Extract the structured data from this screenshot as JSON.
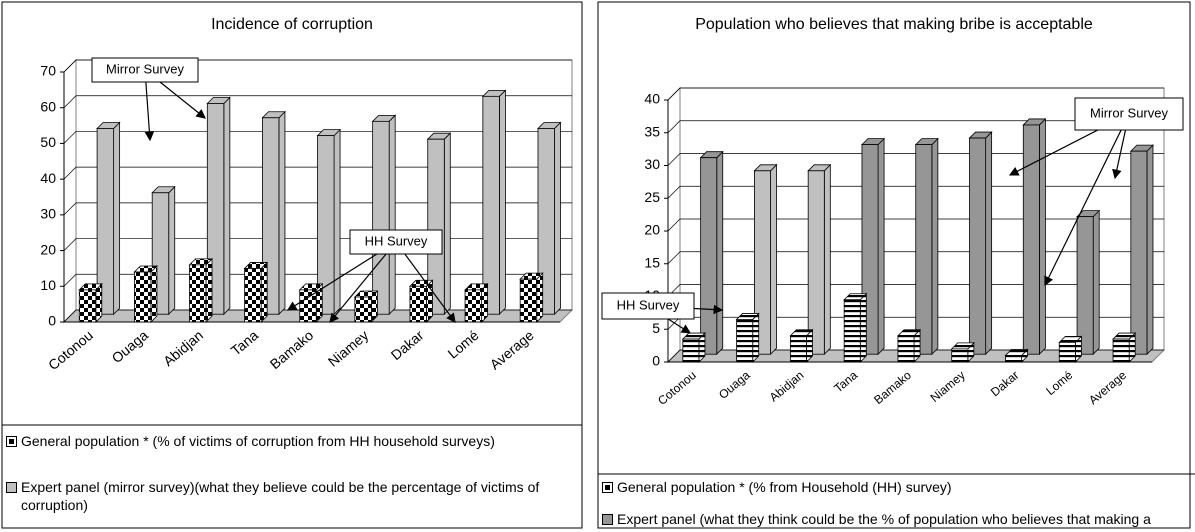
{
  "chart_data": [
    {
      "type": "bar3d",
      "title": "Incidence of corruption",
      "categories": [
        "Cotonou",
        "Ouaga",
        "Abidjan",
        "Tana",
        "Bamako",
        "Niamey",
        "Dakar",
        "Lomé",
        "Average"
      ],
      "series": [
        {
          "name": "General population * (%  of victims of corruption from HH household surveys)",
          "color": "#000000",
          "pattern": "checker",
          "values": [
            9,
            14,
            16,
            15,
            9,
            7,
            10,
            9,
            12
          ]
        },
        {
          "name": "Expert panel (mirror survey)(what they believe could be the percentage of victims of corruption)",
          "color": "#c0c0c0",
          "values": [
            52,
            34,
            59,
            55,
            50,
            54,
            49,
            61,
            52
          ]
        }
      ],
      "ylim": [
        0,
        70
      ],
      "yticks": [
        0,
        10,
        20,
        30,
        40,
        50,
        60,
        70
      ],
      "grid": true,
      "annotations": [
        {
          "text": "Mirror Survey"
        },
        {
          "text": "HH Survey"
        }
      ]
    },
    {
      "type": "bar3d",
      "title": "Population who believes that making bribe is acceptable",
      "categories": [
        "Cotonou",
        "Ouaga",
        "Abidjan",
        "Tana",
        "Bamako",
        "Niamey",
        "Dakar",
        "Lomé",
        "Average"
      ],
      "series": [
        {
          "name": "General population * (%  from Household (HH) survey)",
          "color": "#000000",
          "pattern": "stripes",
          "values": [
            3.5,
            6.5,
            4,
            9.5,
            4,
            2,
            1,
            3,
            3.5
          ]
        },
        {
          "name": "Expert panel (what they think could be the % of population who believes that making a bribe is acceptable)",
          "color": "#969696",
          "colors": [
            "#969696",
            "#c0c0c0",
            "#c0c0c0",
            "#969696",
            "#969696",
            "#969696",
            "#969696",
            "#969696",
            "#969696"
          ],
          "values": [
            30,
            28,
            28,
            32,
            32,
            33,
            35,
            21,
            31
          ]
        }
      ],
      "ylim": [
        0,
        40
      ],
      "yticks": [
        0,
        5,
        10,
        15,
        20,
        25,
        30,
        35,
        40
      ],
      "grid": true,
      "annotations": [
        {
          "text": "HH Survey"
        },
        {
          "text": "Mirror Survey"
        }
      ]
    }
  ]
}
